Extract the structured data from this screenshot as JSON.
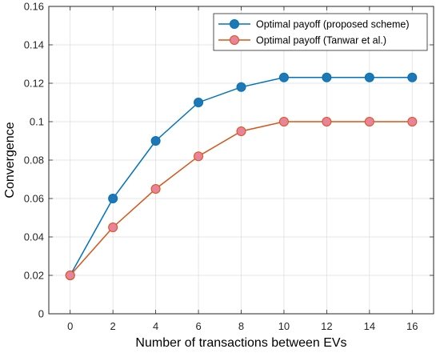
{
  "chart_data": {
    "type": "line",
    "title": "",
    "xlabel": "Number of transactions between EVs",
    "ylabel": "Convergence",
    "x": [
      0,
      2,
      4,
      6,
      8,
      10,
      12,
      14,
      16
    ],
    "xlim": [
      -1,
      17
    ],
    "ylim": [
      0,
      0.16
    ],
    "xticks": [
      0,
      2,
      4,
      6,
      8,
      10,
      12,
      14,
      16
    ],
    "yticks": [
      0,
      0.02,
      0.04,
      0.06,
      0.08,
      0.1,
      0.12,
      0.14,
      0.16
    ],
    "xtick_labels": [
      "0",
      "2",
      "4",
      "6",
      "8",
      "10",
      "12",
      "14",
      "16"
    ],
    "ytick_labels": [
      "0",
      "0.02",
      "0.04",
      "0.06",
      "0.08",
      "0.1",
      "0.12",
      "0.14",
      "0.16"
    ],
    "grid": true,
    "legend_position": "top-right",
    "series": [
      {
        "name": "Optimal payoff (proposed scheme)",
        "color": "#0072BD",
        "marker_fill": "#1F77B4",
        "values": [
          0.02,
          0.06,
          0.09,
          0.11,
          0.118,
          0.123,
          0.123,
          0.123,
          0.123
        ]
      },
      {
        "name": "Optimal payoff (Tanwar et al.)",
        "color": "#D95319",
        "marker_fill": "#E8839B",
        "values": [
          0.02,
          0.045,
          0.065,
          0.082,
          0.095,
          0.1,
          0.1,
          0.1,
          0.1
        ]
      }
    ]
  }
}
